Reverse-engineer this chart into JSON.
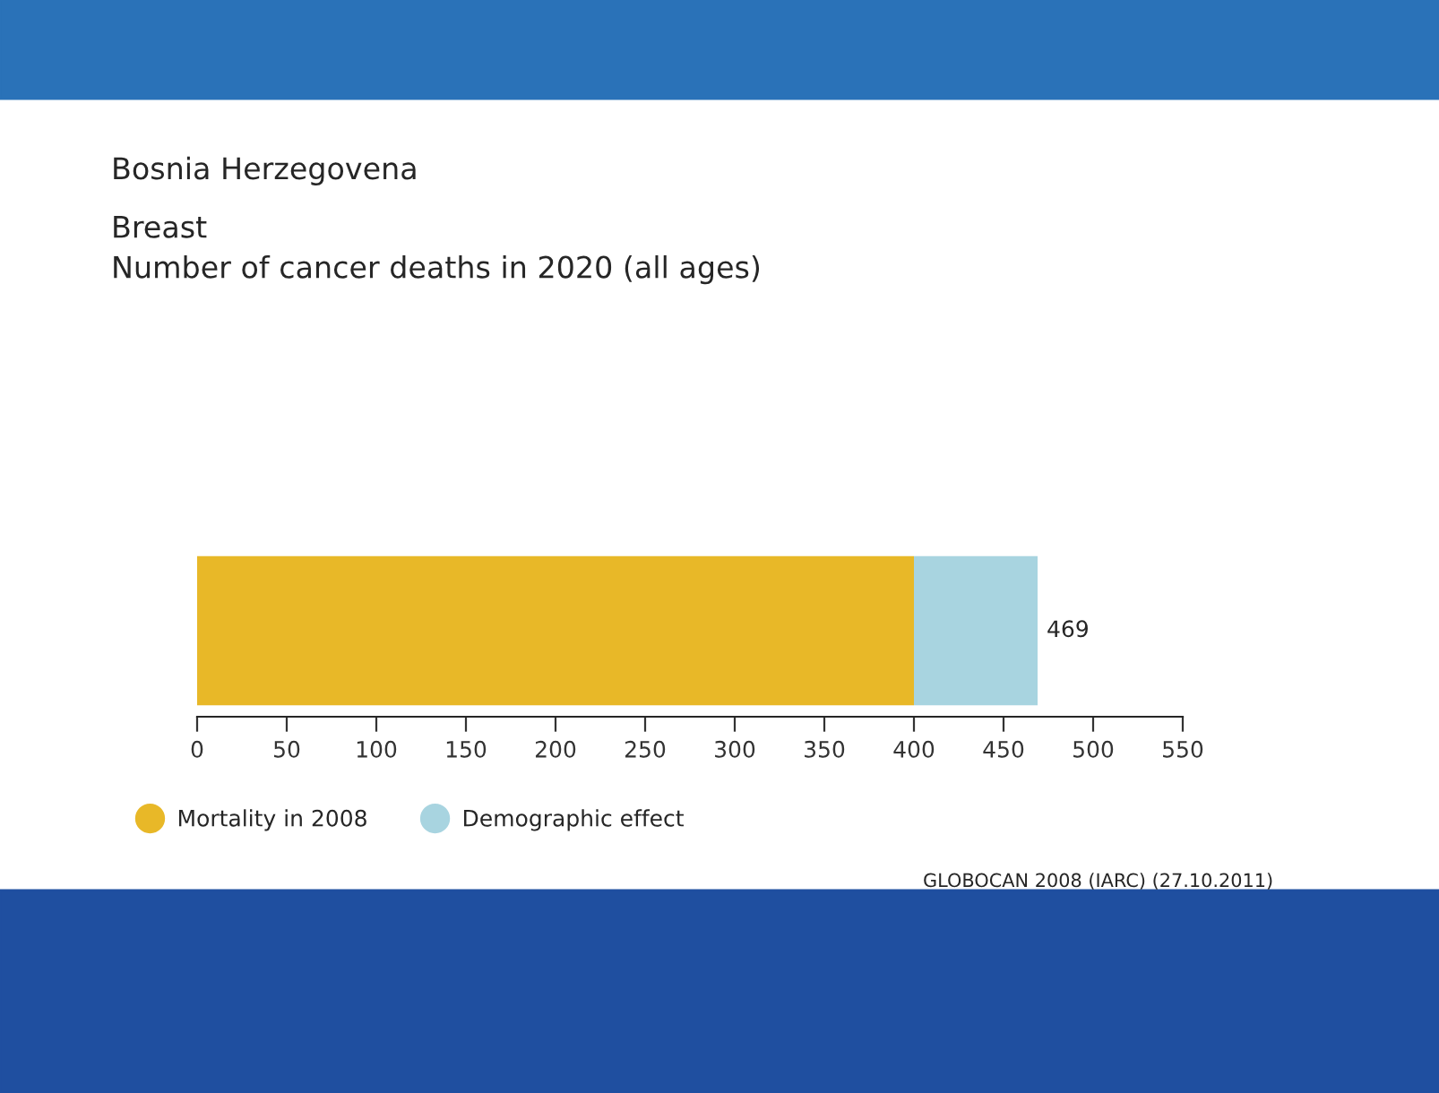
{
  "chart_data": {
    "type": "bar",
    "orientation": "horizontal",
    "stacked": true,
    "title": "Bosnia Herzegovena",
    "subtitle": "Breast\nNumber of cancer deaths in 2020 (all ages)",
    "categories": [
      null
    ],
    "series": [
      {
        "name": "Mortality in 2008",
        "color": "#e8b828",
        "values": [
          400
        ]
      },
      {
        "name": "Demographic effect",
        "color": "#a8d4e0",
        "values": [
          69
        ]
      }
    ],
    "totals": [
      "469"
    ],
    "xlim": [
      0,
      550
    ],
    "xticks": [
      0,
      50,
      100,
      150,
      200,
      250,
      300,
      350,
      400,
      450,
      500,
      550
    ],
    "tick_labels": "x",
    "grid": false,
    "legend": "bottom left",
    "marker": "circle",
    "annotations": [
      "GLOBOCAN 2008 (IARC) (27.10.2011)"
    ]
  }
}
